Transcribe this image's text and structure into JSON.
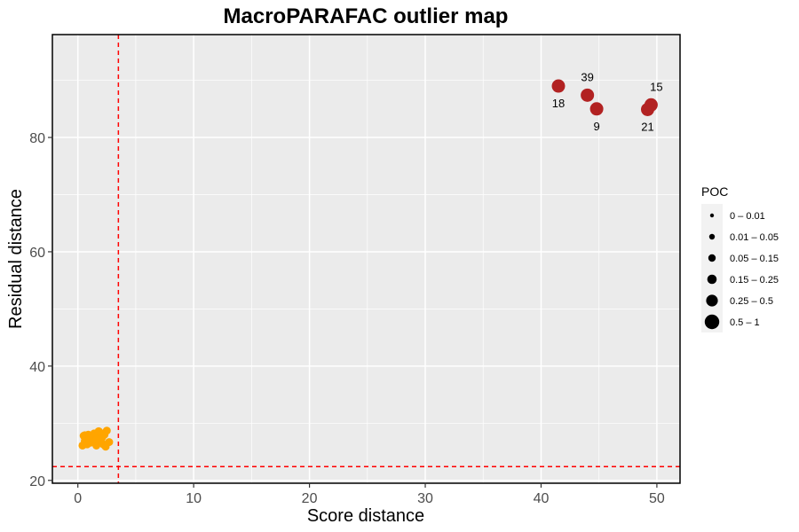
{
  "chart_data": {
    "type": "scatter",
    "title": "MacroPARAFAC outlier map",
    "xlabel": "Score distance",
    "ylabel": "Residual distance",
    "xlim": [
      -2.2,
      52.0
    ],
    "ylim": [
      19.5,
      98.0
    ],
    "x_ticks": [
      0,
      10,
      20,
      30,
      40,
      50
    ],
    "y_ticks": [
      20,
      40,
      60,
      80
    ],
    "grid": true,
    "cutoff_x": 3.5,
    "cutoff_y": 22.4,
    "colors": {
      "panel": "#ebebeb",
      "grid": "#ffffff",
      "outlier": "#b22222",
      "regular": "#ffa500",
      "cutoff": "#ff0000"
    },
    "regular_points": [
      [
        0.5,
        27.8
      ],
      [
        0.6,
        26.9
      ],
      [
        0.7,
        27.4
      ],
      [
        0.8,
        26.3
      ],
      [
        0.9,
        28.0
      ],
      [
        1.0,
        27.1
      ],
      [
        1.1,
        26.6
      ],
      [
        1.2,
        27.7
      ],
      [
        1.3,
        26.9
      ],
      [
        1.4,
        28.2
      ],
      [
        1.5,
        27.3
      ],
      [
        1.6,
        26.1
      ],
      [
        1.7,
        27.9
      ],
      [
        1.8,
        27.0
      ],
      [
        1.9,
        28.4
      ],
      [
        2.0,
        26.8
      ],
      [
        2.1,
        27.5
      ],
      [
        2.2,
        26.3
      ],
      [
        2.3,
        28.0
      ],
      [
        2.5,
        28.7
      ],
      [
        0.4,
        26.1
      ],
      [
        0.6,
        27.9
      ],
      [
        1.0,
        27.8
      ],
      [
        1.3,
        27.4
      ],
      [
        1.6,
        27.2
      ],
      [
        2.4,
        25.9
      ],
      [
        1.8,
        28.6
      ],
      [
        2.7,
        26.7
      ]
    ],
    "outlier_points": [
      {
        "label": "18",
        "x": 41.5,
        "y": 89.0
      },
      {
        "label": "39",
        "x": 44.0,
        "y": 87.4
      },
      {
        "label": "9",
        "x": 44.8,
        "y": 85.0
      },
      {
        "label": "15",
        "x": 49.5,
        "y": 85.7
      },
      {
        "label": "21",
        "x": 49.2,
        "y": 84.9
      }
    ],
    "legend": {
      "title": "POC",
      "position": "right",
      "entries": [
        "0 – 0.01",
        "0.01 – 0.05",
        "0.05 – 0.15",
        "0.15 – 0.25",
        "0.25 – 0.5",
        "0.5 – 1"
      ]
    }
  }
}
